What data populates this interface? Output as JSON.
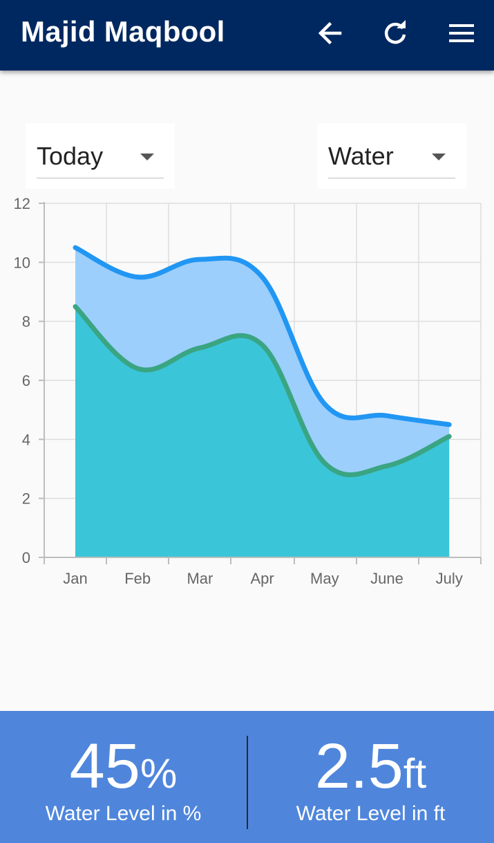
{
  "appbar": {
    "title": "Majid Maqbool",
    "icons": [
      "arrow-back-icon",
      "refresh-icon",
      "menu-icon"
    ]
  },
  "filters": {
    "period": {
      "value": "Today"
    },
    "metric": {
      "value": "Water"
    }
  },
  "chart_data": {
    "type": "area",
    "categories": [
      "Jan",
      "Feb",
      "Mar",
      "Apr",
      "May",
      "June",
      "July"
    ],
    "series": [
      {
        "values": [
          10.5,
          9.5,
          10.1,
          9.5,
          5.2,
          4.8,
          4.5
        ],
        "color": "#2196f3",
        "fill": "#9ccffc"
      },
      {
        "values": [
          8.5,
          6.4,
          7.1,
          7.2,
          3.2,
          3.1,
          4.1
        ],
        "color": "#3aa582",
        "fill": "#3bc5d8"
      }
    ],
    "ylim": [
      0,
      12
    ],
    "yticks": [
      0,
      2,
      4,
      6,
      8,
      10,
      12
    ],
    "grid": true,
    "legend": "none"
  },
  "stats": {
    "percent": {
      "value": "45",
      "unit": "%",
      "label": "Water Level in %"
    },
    "feet": {
      "value": "2.5",
      "unit": "ft",
      "label": "Water Level in ft"
    }
  },
  "colors": {
    "appbar": "#002860",
    "stats_bg": "#4f86dc"
  }
}
